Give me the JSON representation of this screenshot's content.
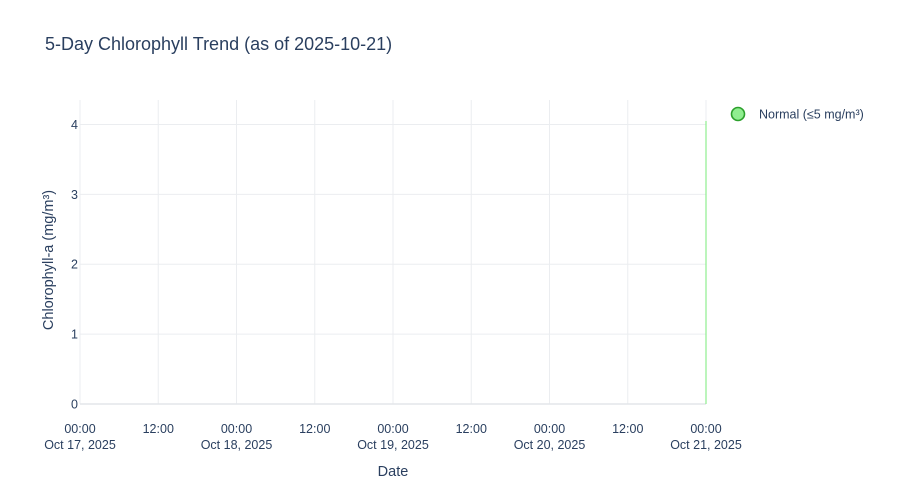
{
  "chart_data": {
    "type": "line",
    "title": "5-Day Chlorophyll Trend (as of 2025-10-21)",
    "xlabel": "Date",
    "ylabel": "Chlorophyll-a (mg/m³)",
    "xlim": [
      "2025-10-17T00:00",
      "2025-10-21T00:00"
    ],
    "ylim": [
      -0.2,
      4.35
    ],
    "x_ticks": [
      {
        "value": "2025-10-17T00:00",
        "time": "00:00",
        "date": "Oct 17, 2025"
      },
      {
        "value": "2025-10-17T12:00",
        "time": "12:00",
        "date": ""
      },
      {
        "value": "2025-10-18T00:00",
        "time": "00:00",
        "date": "Oct 18, 2025"
      },
      {
        "value": "2025-10-18T12:00",
        "time": "12:00",
        "date": ""
      },
      {
        "value": "2025-10-19T00:00",
        "time": "00:00",
        "date": "Oct 19, 2025"
      },
      {
        "value": "2025-10-19T12:00",
        "time": "12:00",
        "date": ""
      },
      {
        "value": "2025-10-20T00:00",
        "time": "00:00",
        "date": "Oct 20, 2025"
      },
      {
        "value": "2025-10-20T12:00",
        "time": "12:00",
        "date": ""
      },
      {
        "value": "2025-10-21T00:00",
        "time": "00:00",
        "date": "Oct 21, 2025"
      }
    ],
    "y_ticks": [
      0,
      1,
      2,
      3,
      4
    ],
    "grid": true,
    "legend_position": "top-right",
    "series": [
      {
        "name": "Normal (≤5 mg/m³)",
        "color": "#90ee90",
        "marker_color": "#2ca02c",
        "mode": "lines+markers",
        "points": [
          {
            "x": "2025-10-21T00:00",
            "y": 0
          },
          {
            "x": "2025-10-21T00:00",
            "y": 4.05
          }
        ]
      }
    ]
  }
}
